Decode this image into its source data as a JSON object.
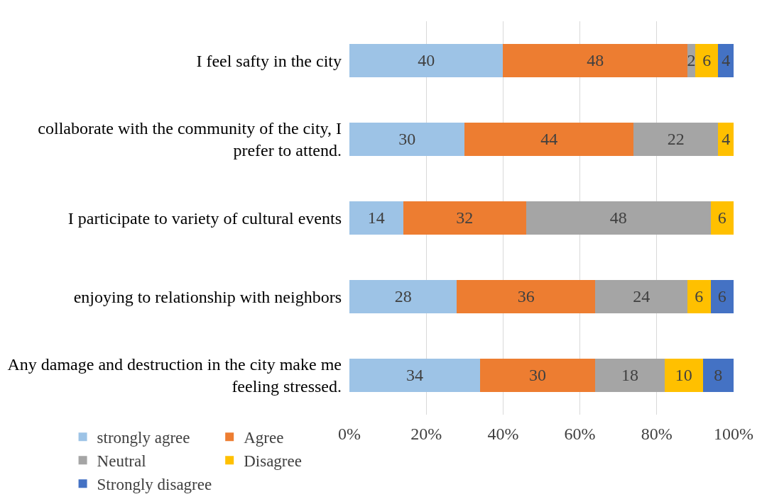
{
  "chart_data": {
    "type": "bar",
    "orientation": "horizontal",
    "stacked": true,
    "categories": [
      "I feel safty in the city",
      "collaborate with the community of the city, I prefer to attend.",
      "I participate to variety of cultural events",
      "enjoying to relationship with neighbors",
      "Any damage and destruction in the city make me feeling stressed."
    ],
    "series": [
      {
        "name": "strongly agree",
        "color": "#9dc3e6",
        "values": [
          40,
          30,
          14,
          28,
          34
        ],
        "value_labels": [
          "40",
          "30",
          "14",
          "28",
          "34"
        ]
      },
      {
        "name": "Agree",
        "color": "#ed7d31",
        "values": [
          48,
          44,
          32,
          36,
          30
        ],
        "value_labels": [
          "48",
          "44",
          "32",
          "36",
          "30"
        ]
      },
      {
        "name": "Neutral",
        "color": "#a5a5a5",
        "values": [
          2,
          22,
          48,
          24,
          18
        ],
        "value_labels": [
          "2",
          "22",
          "48",
          "24",
          "18"
        ]
      },
      {
        "name": "Disagree",
        "color": "#ffc000",
        "values": [
          6,
          4,
          6,
          6,
          10
        ],
        "value_labels": [
          "6",
          "4",
          "6",
          "6",
          "10"
        ]
      },
      {
        "name": "Strongly disagree",
        "color": "#4472c4",
        "values": [
          4,
          null,
          null,
          6,
          8
        ],
        "value_labels": [
          "4",
          null,
          null,
          "6",
          "8"
        ]
      }
    ],
    "xlim": [
      0,
      100
    ],
    "xticks": [
      {
        "value": 0,
        "label": "0%"
      },
      {
        "value": 20,
        "label": "20%"
      },
      {
        "value": 40,
        "label": "40%"
      },
      {
        "value": 60,
        "label": "60%"
      },
      {
        "value": 80,
        "label": "80%"
      },
      {
        "value": 100,
        "label": "100%"
      }
    ],
    "grid": "x",
    "legend": "bottom"
  }
}
